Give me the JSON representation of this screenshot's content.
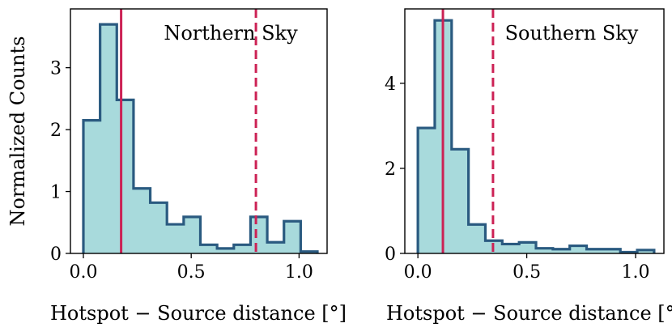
{
  "chart_data": [
    {
      "type": "histogram",
      "title": "Northern Sky",
      "xlabel": "Hotspot − Source distance [°]",
      "ylabel": "Normalized Counts",
      "xlim": [
        -0.06,
        1.13
      ],
      "ylim": [
        0,
        3.95
      ],
      "xticks": [
        0.0,
        0.5,
        1.0
      ],
      "xtick_labels": [
        "0.0",
        "0.5",
        "1.0"
      ],
      "yticks": [
        0,
        1,
        2,
        3
      ],
      "ytick_labels": [
        "0",
        "1",
        "2",
        "3"
      ],
      "bin_edges": [
        0.0,
        0.0775,
        0.155,
        0.2325,
        0.31,
        0.3875,
        0.465,
        0.5425,
        0.62,
        0.6975,
        0.775,
        0.8525,
        0.93,
        1.0075,
        1.085
      ],
      "values": [
        2.15,
        3.7,
        2.48,
        1.05,
        0.82,
        0.47,
        0.59,
        0.14,
        0.08,
        0.14,
        0.59,
        0.18,
        0.52,
        0.03
      ],
      "median_line": 0.175,
      "percentile_line": 0.8,
      "colors": {
        "fill": "#a8dadc",
        "edge": "#2a5a80",
        "lines": "#cc2255"
      }
    },
    {
      "type": "histogram",
      "title": "Southern Sky",
      "xlabel": "Hotspot − Source distance [°]",
      "ylabel": "",
      "xlim": [
        -0.06,
        1.13
      ],
      "ylim": [
        0,
        5.75
      ],
      "xticks": [
        0.0,
        0.5,
        1.0
      ],
      "xtick_labels": [
        "0.0",
        "0.5",
        "1.0"
      ],
      "yticks": [
        0,
        2,
        4
      ],
      "ytick_labels": [
        "0",
        "2",
        "4"
      ],
      "bin_edges": [
        0.0,
        0.0775,
        0.155,
        0.2325,
        0.31,
        0.3875,
        0.465,
        0.5425,
        0.62,
        0.6975,
        0.775,
        0.8525,
        0.93,
        1.0075,
        1.085
      ],
      "values": [
        2.95,
        5.48,
        2.45,
        0.68,
        0.3,
        0.22,
        0.26,
        0.12,
        0.1,
        0.18,
        0.1,
        0.1,
        0.03,
        0.08
      ],
      "median_line": 0.115,
      "percentile_line": 0.345,
      "colors": {
        "fill": "#a8dadc",
        "edge": "#2a5a80",
        "lines": "#cc2255"
      }
    }
  ]
}
